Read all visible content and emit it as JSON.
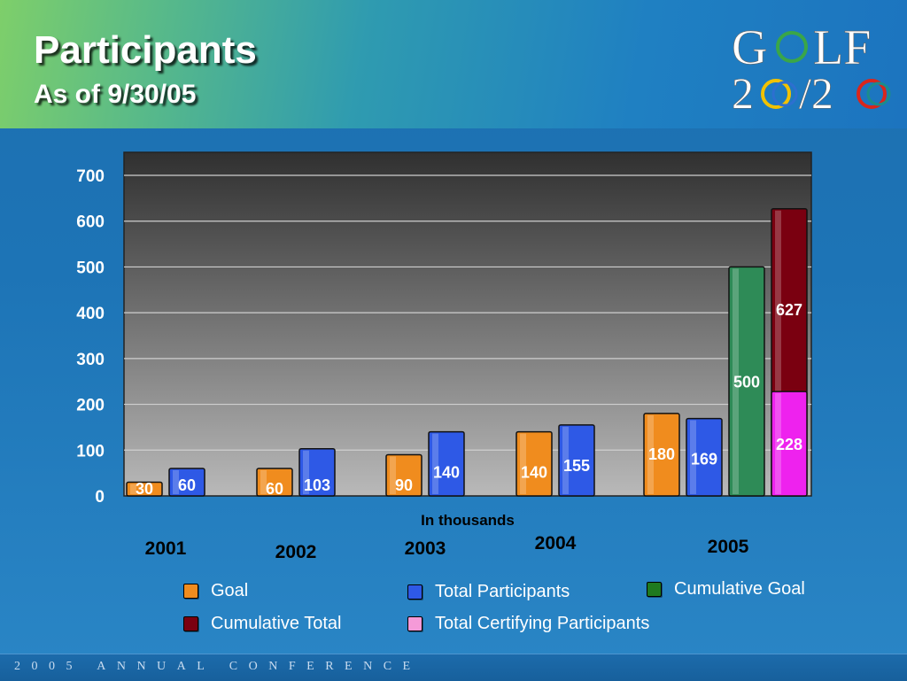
{
  "header": {
    "title": "Participants",
    "subtitle": "As of 9/30/05"
  },
  "logo": {
    "line1_prefix": "G",
    "line1_suffix": "LF",
    "line2_a": "2",
    "line2_b": "/2"
  },
  "footer": {
    "text": "2005 ANNUAL CONFERENCE"
  },
  "colors": {
    "goal": "#f08c1e",
    "total_participants": "#2e59e6",
    "cumulative_goal": "#2e8b57",
    "cumulative_total": "#7a0010",
    "total_certifying": "#ee22ee"
  },
  "chart_data": {
    "type": "bar",
    "xlabel": "In thousands",
    "ylim": [
      0,
      700
    ],
    "yticks": [
      0,
      100,
      200,
      300,
      400,
      500,
      600,
      700
    ],
    "grid": true,
    "legend_position": "bottom",
    "groups": [
      {
        "label": "2001",
        "bars": [
          {
            "series": "Goal",
            "value": 30
          },
          {
            "series": "Total Participants",
            "value": 60
          }
        ]
      },
      {
        "label": "2002",
        "bars": [
          {
            "series": "Goal",
            "value": 60
          },
          {
            "series": "Total Participants",
            "value": 103
          }
        ]
      },
      {
        "label": "2003",
        "bars": [
          {
            "series": "Goal",
            "value": 90
          },
          {
            "series": "Total Participants",
            "value": 140
          }
        ]
      },
      {
        "label": "2004",
        "bars": [
          {
            "series": "Goal",
            "value": 140
          },
          {
            "series": "Total Participants",
            "value": 155
          }
        ]
      },
      {
        "label": "2005",
        "bars": [
          {
            "series": "Goal",
            "value": 180
          },
          {
            "series": "Total Participants",
            "value": 169
          },
          {
            "series": "Cumulative Goal",
            "value": 500
          },
          {
            "series": "Cumulative Total",
            "value": 627,
            "stack_top": true
          },
          {
            "series": "Total Certifying Participants",
            "value": 228,
            "stack_base": true
          }
        ]
      }
    ],
    "legend": [
      {
        "name": "Goal",
        "color_key": "goal"
      },
      {
        "name": "Total Participants",
        "color_key": "total_participants"
      },
      {
        "name": "Cumulative Goal",
        "color_key": "cumulative_goal"
      },
      {
        "name": "Cumulative Total",
        "color_key": "cumulative_total"
      },
      {
        "name": "Total Certifying Participants",
        "color_key": "total_certifying"
      }
    ]
  }
}
